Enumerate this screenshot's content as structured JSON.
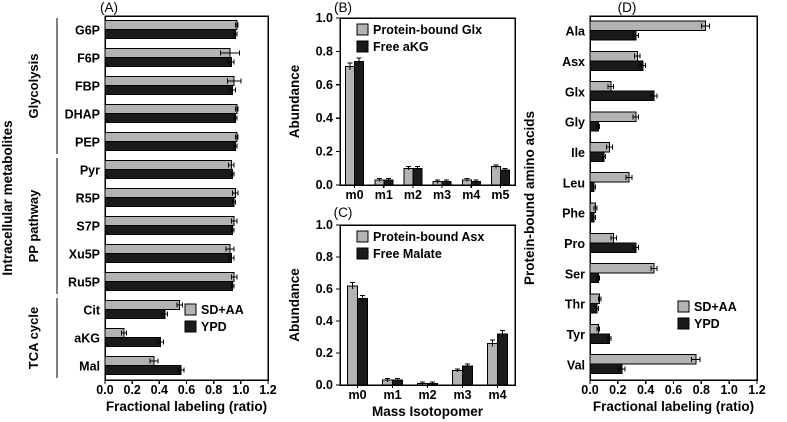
{
  "figure": {
    "background": "#ffffff",
    "series_colors": {
      "gray": "#b3b3b3",
      "black": "#1a1a1a"
    }
  },
  "chart_data": [
    {
      "panel_label": "(A)",
      "type": "bar",
      "orientation": "horizontal",
      "xlabel": "Fractional labeling (ratio)",
      "ylabel": "Intracellular metabolites",
      "xlim": [
        0,
        1.2
      ],
      "xticks": [
        0.0,
        0.2,
        0.4,
        0.6,
        0.8,
        1.0,
        1.2
      ],
      "grid": false,
      "legend_position": "inside-lower-right",
      "categories": [
        "G6P",
        "F6P",
        "FBP",
        "DHAP",
        "PEP",
        "Pyr",
        "R5P",
        "S7P",
        "Xu5P",
        "Ru5P",
        "Cit",
        "aKG",
        "Mal"
      ],
      "category_groups": [
        {
          "label": "Glycolysis",
          "start": 0,
          "end": 4
        },
        {
          "label": "PP pathway",
          "start": 5,
          "end": 9
        },
        {
          "label": "TCA cycle",
          "start": 10,
          "end": 12
        }
      ],
      "series": [
        {
          "name": "SD+AA",
          "color": "#b3b3b3",
          "values": [
            0.97,
            0.92,
            0.95,
            0.97,
            0.97,
            0.93,
            0.96,
            0.95,
            0.92,
            0.95,
            0.55,
            0.14,
            0.36
          ],
          "errors": [
            0.01,
            0.07,
            0.05,
            0.01,
            0.01,
            0.02,
            0.02,
            0.02,
            0.03,
            0.02,
            0.02,
            0.02,
            0.03
          ]
        },
        {
          "name": "YPD",
          "color": "#1a1a1a",
          "values": [
            0.96,
            0.93,
            0.94,
            0.96,
            0.96,
            0.94,
            0.95,
            0.94,
            0.93,
            0.94,
            0.44,
            0.41,
            0.56
          ],
          "errors": [
            0.01,
            0.02,
            0.02,
            0.01,
            0.01,
            0.01,
            0.01,
            0.01,
            0.02,
            0.01,
            0.02,
            0.02,
            0.02
          ]
        }
      ]
    },
    {
      "panel_label": "(B)",
      "type": "bar",
      "orientation": "vertical",
      "xlabel": "",
      "ylabel": "Abundance",
      "ylim": [
        0,
        1.0
      ],
      "yticks": [
        0.0,
        0.2,
        0.4,
        0.6,
        0.8,
        1.0
      ],
      "grid": false,
      "legend_position": "inside-top-right",
      "categories": [
        "m0",
        "m1",
        "m2",
        "m3",
        "m4",
        "m5"
      ],
      "series": [
        {
          "name": "Protein-bound Glx",
          "color": "#b3b3b3",
          "values": [
            0.71,
            0.03,
            0.1,
            0.02,
            0.03,
            0.11
          ],
          "errors": [
            0.02,
            0.01,
            0.01,
            0.01,
            0.01,
            0.01
          ]
        },
        {
          "name": "Free aKG",
          "color": "#1a1a1a",
          "values": [
            0.74,
            0.03,
            0.1,
            0.02,
            0.02,
            0.09
          ],
          "errors": [
            0.02,
            0.01,
            0.01,
            0.01,
            0.01,
            0.01
          ]
        }
      ]
    },
    {
      "panel_label": "(C)",
      "type": "bar",
      "orientation": "vertical",
      "xlabel": "Mass Isotopomer",
      "ylabel": "Abundance",
      "ylim": [
        0,
        1.0
      ],
      "yticks": [
        0.0,
        0.2,
        0.4,
        0.6,
        0.8,
        1.0
      ],
      "grid": false,
      "legend_position": "inside-top-right",
      "categories": [
        "m0",
        "m1",
        "m2",
        "m3",
        "m4"
      ],
      "series": [
        {
          "name": "Protein-bound Asx",
          "color": "#b3b3b3",
          "values": [
            0.62,
            0.03,
            0.01,
            0.09,
            0.26
          ],
          "errors": [
            0.02,
            0.01,
            0.01,
            0.01,
            0.02
          ]
        },
        {
          "name": "Free Malate",
          "color": "#1a1a1a",
          "values": [
            0.54,
            0.03,
            0.01,
            0.12,
            0.32
          ],
          "errors": [
            0.02,
            0.01,
            0.01,
            0.01,
            0.02
          ]
        }
      ]
    },
    {
      "panel_label": "(D)",
      "type": "bar",
      "orientation": "horizontal",
      "xlabel": "Fractional labeling (ratio)",
      "ylabel": "Protein-bound amino acids",
      "xlim": [
        0,
        1.2
      ],
      "xticks": [
        0.0,
        0.2,
        0.4,
        0.6,
        0.8,
        1.0,
        1.2
      ],
      "grid": false,
      "legend_position": "inside-middle-right",
      "categories": [
        "Ala",
        "Asx",
        "Glx",
        "Gly",
        "Ile",
        "Leu",
        "Phe",
        "Pro",
        "Ser",
        "Thr",
        "Tyr",
        "Val"
      ],
      "series": [
        {
          "name": "SD+AA",
          "color": "#b3b3b3",
          "values": [
            0.83,
            0.34,
            0.15,
            0.33,
            0.14,
            0.28,
            0.04,
            0.17,
            0.46,
            0.07,
            0.06,
            0.76
          ],
          "errors": [
            0.03,
            0.02,
            0.02,
            0.02,
            0.02,
            0.02,
            0.01,
            0.02,
            0.02,
            0.01,
            0.01,
            0.03
          ]
        },
        {
          "name": "YPD",
          "color": "#1a1a1a",
          "values": [
            0.33,
            0.38,
            0.46,
            0.06,
            0.1,
            0.03,
            0.03,
            0.33,
            0.06,
            0.05,
            0.14,
            0.23
          ],
          "errors": [
            0.02,
            0.02,
            0.02,
            0.01,
            0.01,
            0.01,
            0.01,
            0.02,
            0.01,
            0.01,
            0.01,
            0.02
          ]
        }
      ]
    }
  ]
}
